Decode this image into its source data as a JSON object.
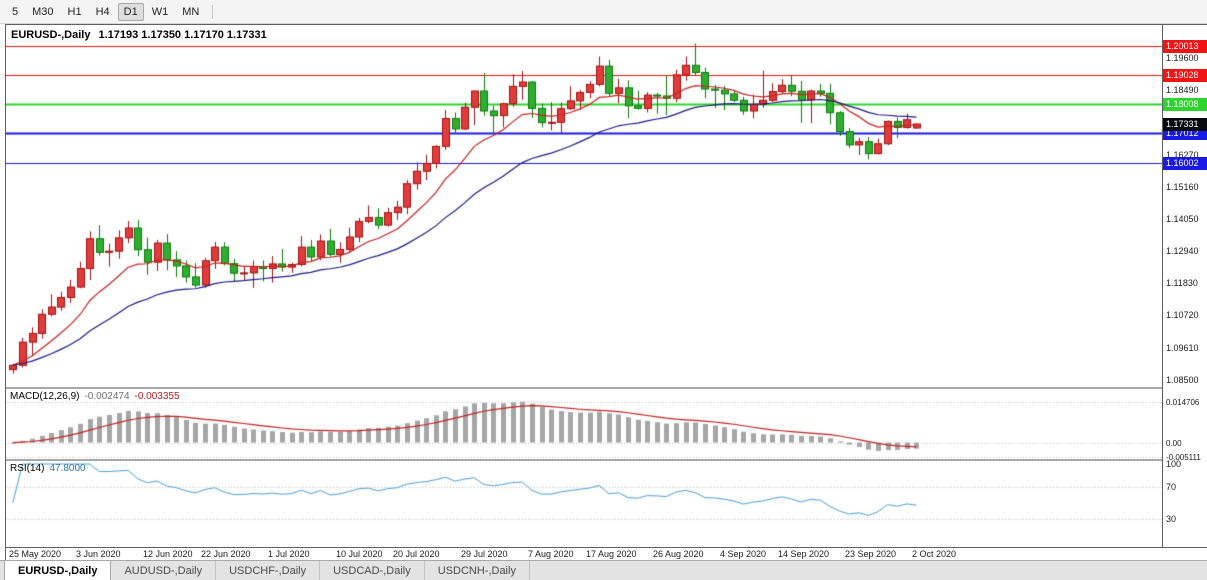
{
  "toolbar": {
    "timeframes": [
      {
        "label": "5",
        "active": false
      },
      {
        "label": "M30",
        "active": false
      },
      {
        "label": "H1",
        "active": false
      },
      {
        "label": "H4",
        "active": false
      },
      {
        "label": "D1",
        "active": true
      },
      {
        "label": "W1",
        "active": false
      },
      {
        "label": "MN",
        "active": false
      }
    ]
  },
  "chart": {
    "symbol_period": "EURUSD-,Daily",
    "ohlc_text": "1.17193 1.17350 1.17170 1.17331"
  },
  "chart_data": {
    "type": "candlestick",
    "symbol": "EURUSD-",
    "timeframe": "Daily",
    "open": 1.17193,
    "high": 1.1735,
    "low": 1.1717,
    "close": 1.17331,
    "price_range": {
      "min": 1.0825,
      "max": 1.2075
    },
    "plot_fraction": 0.79,
    "y_ticks": [
      1.196,
      1.1849,
      1.1738,
      1.1627,
      1.1516,
      1.1405,
      1.1294,
      1.1183,
      1.1072,
      1.0961,
      1.085
    ],
    "levels": [
      {
        "price": 1.20013,
        "color": "#f01414",
        "width": 1
      },
      {
        "price": 1.19028,
        "color": "#f01414",
        "width": 1
      },
      {
        "price": 1.18008,
        "color": "#2dd42d",
        "width": 2
      },
      {
        "price": 1.17012,
        "color": "#1919e6",
        "width": 2
      },
      {
        "price": 1.16002,
        "color": "#1919e6",
        "width": 1
      }
    ],
    "current_price": {
      "value": 1.17331,
      "bg": "#08080f"
    },
    "colors": {
      "up_fill": "#e13b3b",
      "up_edge": "#a31212",
      "down_fill": "#2fae2f",
      "down_edge": "#0c7a0c",
      "ma_fast": "#c92222",
      "ma_slow": "#1c1c80",
      "background": "#ffffff"
    },
    "ma": [
      {
        "period": 10,
        "color": "#c92222"
      },
      {
        "period": 25,
        "color": "#1c1c80"
      }
    ],
    "date_labels": [
      {
        "label": "25 May 2020",
        "i": 0
      },
      {
        "label": "3 Jun 2020",
        "i": 7
      },
      {
        "label": "12 Jun 2020",
        "i": 14
      },
      {
        "label": "22 Jun 2020",
        "i": 20
      },
      {
        "label": "1 Jul 2020",
        "i": 27
      },
      {
        "label": "10 Jul 2020",
        "i": 34
      },
      {
        "label": "20 Jul 2020",
        "i": 40
      },
      {
        "label": "29 Jul 2020",
        "i": 47
      },
      {
        "label": "7 Aug 2020",
        "i": 54
      },
      {
        "label": "17 Aug 2020",
        "i": 60
      },
      {
        "label": "26 Aug 2020",
        "i": 67
      },
      {
        "label": "4 Sep 2020",
        "i": 74
      },
      {
        "label": "14 Sep 2020",
        "i": 80
      },
      {
        "label": "23 Sep 2020",
        "i": 87
      },
      {
        "label": "2 Oct 2020",
        "i": 94
      }
    ],
    "candles": [
      [
        1.0885,
        1.0905,
        1.0871,
        1.09
      ],
      [
        1.09,
        1.0995,
        1.0892,
        1.098
      ],
      [
        1.098,
        1.1031,
        1.0934,
        1.101
      ],
      [
        1.101,
        1.1093,
        1.0992,
        1.1076
      ],
      [
        1.1076,
        1.1145,
        1.1069,
        1.1101
      ],
      [
        1.1101,
        1.1154,
        1.1088,
        1.1134
      ],
      [
        1.1134,
        1.1195,
        1.1115,
        1.117
      ],
      [
        1.117,
        1.1257,
        1.1166,
        1.1234
      ],
      [
        1.1234,
        1.1362,
        1.1194,
        1.1337
      ],
      [
        1.1337,
        1.1384,
        1.1278,
        1.129
      ],
      [
        1.129,
        1.132,
        1.1241,
        1.1294
      ],
      [
        1.1294,
        1.1366,
        1.1268,
        1.134
      ],
      [
        1.134,
        1.1398,
        1.1322,
        1.1374
      ],
      [
        1.1374,
        1.1401,
        1.1277,
        1.1299
      ],
      [
        1.1299,
        1.1341,
        1.1213,
        1.1256
      ],
      [
        1.1256,
        1.1333,
        1.1226,
        1.1322
      ],
      [
        1.1322,
        1.1353,
        1.1228,
        1.1264
      ],
      [
        1.1264,
        1.1294,
        1.1204,
        1.1243
      ],
      [
        1.1243,
        1.1262,
        1.1185,
        1.1205
      ],
      [
        1.1205,
        1.1253,
        1.1168,
        1.1177
      ],
      [
        1.1177,
        1.1271,
        1.1168,
        1.1261
      ],
      [
        1.1261,
        1.1326,
        1.1233,
        1.1308
      ],
      [
        1.1308,
        1.1325,
        1.1245,
        1.1251
      ],
      [
        1.1251,
        1.1268,
        1.119,
        1.1218
      ],
      [
        1.1218,
        1.1239,
        1.1194,
        1.1219
      ],
      [
        1.1219,
        1.1262,
        1.1167,
        1.1241
      ],
      [
        1.1241,
        1.1262,
        1.119,
        1.1234
      ],
      [
        1.1234,
        1.1277,
        1.1185,
        1.125
      ],
      [
        1.125,
        1.1302,
        1.1223,
        1.1239
      ],
      [
        1.1239,
        1.1254,
        1.1219,
        1.1248
      ],
      [
        1.1248,
        1.1346,
        1.1241,
        1.1308
      ],
      [
        1.1308,
        1.1333,
        1.1259,
        1.1274
      ],
      [
        1.1274,
        1.1352,
        1.1263,
        1.1329
      ],
      [
        1.1329,
        1.1371,
        1.1275,
        1.1283
      ],
      [
        1.1283,
        1.1325,
        1.1254,
        1.13
      ],
      [
        1.13,
        1.1375,
        1.1292,
        1.1343
      ],
      [
        1.1343,
        1.1409,
        1.1325,
        1.1397
      ],
      [
        1.1397,
        1.1452,
        1.139,
        1.141
      ],
      [
        1.141,
        1.1442,
        1.137,
        1.1384
      ],
      [
        1.1384,
        1.1444,
        1.1379,
        1.1427
      ],
      [
        1.1427,
        1.1468,
        1.1402,
        1.1446
      ],
      [
        1.1446,
        1.154,
        1.1422,
        1.1527
      ],
      [
        1.1527,
        1.1601,
        1.1507,
        1.157
      ],
      [
        1.157,
        1.1627,
        1.1539,
        1.1597
      ],
      [
        1.1597,
        1.166,
        1.158,
        1.1656
      ],
      [
        1.1656,
        1.1781,
        1.1644,
        1.1752
      ],
      [
        1.1752,
        1.1773,
        1.17,
        1.1716
      ],
      [
        1.1716,
        1.1806,
        1.1712,
        1.1791
      ],
      [
        1.1791,
        1.1849,
        1.1729,
        1.1847
      ],
      [
        1.1847,
        1.1909,
        1.1762,
        1.1778
      ],
      [
        1.1778,
        1.1797,
        1.1696,
        1.1762
      ],
      [
        1.1762,
        1.1807,
        1.1721,
        1.1803
      ],
      [
        1.1803,
        1.1905,
        1.1793,
        1.1863
      ],
      [
        1.1863,
        1.1916,
        1.1817,
        1.1878
      ],
      [
        1.1878,
        1.1882,
        1.1754,
        1.1787
      ],
      [
        1.1787,
        1.1804,
        1.1722,
        1.1738
      ],
      [
        1.1738,
        1.1808,
        1.1711,
        1.1739
      ],
      [
        1.1739,
        1.1807,
        1.1701,
        1.1786
      ],
      [
        1.1786,
        1.1864,
        1.1782,
        1.1813
      ],
      [
        1.1813,
        1.1851,
        1.1782,
        1.1842
      ],
      [
        1.1842,
        1.1881,
        1.1822,
        1.187
      ],
      [
        1.187,
        1.1966,
        1.1863,
        1.1933
      ],
      [
        1.1933,
        1.1954,
        1.183,
        1.1839
      ],
      [
        1.1839,
        1.1889,
        1.1805,
        1.1858
      ],
      [
        1.1858,
        1.1884,
        1.1754,
        1.1796
      ],
      [
        1.1796,
        1.1848,
        1.1783,
        1.1787
      ],
      [
        1.1787,
        1.1843,
        1.1773,
        1.1833
      ],
      [
        1.1833,
        1.1841,
        1.1769,
        1.183
      ],
      [
        1.183,
        1.1901,
        1.1763,
        1.1822
      ],
      [
        1.1822,
        1.192,
        1.1808,
        1.1903
      ],
      [
        1.1903,
        1.1966,
        1.1883,
        1.1936
      ],
      [
        1.1936,
        1.2011,
        1.1899,
        1.1911
      ],
      [
        1.1911,
        1.1928,
        1.1822,
        1.1854
      ],
      [
        1.1854,
        1.1868,
        1.1789,
        1.185
      ],
      [
        1.185,
        1.1865,
        1.1781,
        1.1837
      ],
      [
        1.1837,
        1.1849,
        1.1809,
        1.1815
      ],
      [
        1.1815,
        1.1827,
        1.1765,
        1.1778
      ],
      [
        1.1778,
        1.1834,
        1.1753,
        1.1801
      ],
      [
        1.1801,
        1.1917,
        1.1789,
        1.1815
      ],
      [
        1.1815,
        1.1874,
        1.1809,
        1.1845
      ],
      [
        1.1845,
        1.1888,
        1.1839,
        1.1867
      ],
      [
        1.1867,
        1.19,
        1.1829,
        1.1846
      ],
      [
        1.1846,
        1.1882,
        1.1737,
        1.1816
      ],
      [
        1.1816,
        1.1852,
        1.1736,
        1.1847
      ],
      [
        1.1847,
        1.1871,
        1.1827,
        1.1839
      ],
      [
        1.1839,
        1.1872,
        1.1732,
        1.1772
      ],
      [
        1.1772,
        1.1778,
        1.1692,
        1.1707
      ],
      [
        1.1707,
        1.1719,
        1.1651,
        1.1661
      ],
      [
        1.1661,
        1.1686,
        1.1626,
        1.1672
      ],
      [
        1.1672,
        1.1688,
        1.1611,
        1.1631
      ],
      [
        1.1631,
        1.1683,
        1.1628,
        1.1665
      ],
      [
        1.1665,
        1.1745,
        1.166,
        1.1742
      ],
      [
        1.1742,
        1.1755,
        1.1684,
        1.1721
      ],
      [
        1.1721,
        1.1769,
        1.1717,
        1.1748
      ],
      [
        1.17193,
        1.1735,
        1.1717,
        1.17331
      ]
    ]
  },
  "macd": {
    "label": "MACD(12,26,9)",
    "value_main": "-0.002474",
    "value_signal": "-0.003355",
    "params": {
      "fast": 12,
      "slow": 26,
      "signal": 9
    },
    "range": {
      "min": -0.006,
      "max": 0.0195
    },
    "ticks": [
      {
        "value": 0.014706,
        "label": "0.014706"
      },
      {
        "value": 0,
        "label": "0.00"
      },
      {
        "value": -0.005111,
        "label": "-0.005111"
      }
    ],
    "histogram_color": "#a6a6a6",
    "signal_color": "#c22222"
  },
  "rsi": {
    "label": "RSI(14)",
    "value": "47.8000",
    "period": 14,
    "range": {
      "min": 0,
      "max": 100
    },
    "ticks": [
      {
        "value": 100,
        "label": "100"
      },
      {
        "value": 70,
        "label": "70"
      },
      {
        "value": 30,
        "label": "30"
      }
    ],
    "levels": [
      70,
      30
    ],
    "line_color": "#4f9fd8"
  },
  "tabs": [
    {
      "label": "EURUSD-,Daily",
      "active": true
    },
    {
      "label": "AUDUSD-,Daily",
      "active": false
    },
    {
      "label": "USDCHF-,Daily",
      "active": false
    },
    {
      "label": "USDCAD-,Daily",
      "active": false
    },
    {
      "label": "USDCNH-,Daily",
      "active": false
    }
  ]
}
